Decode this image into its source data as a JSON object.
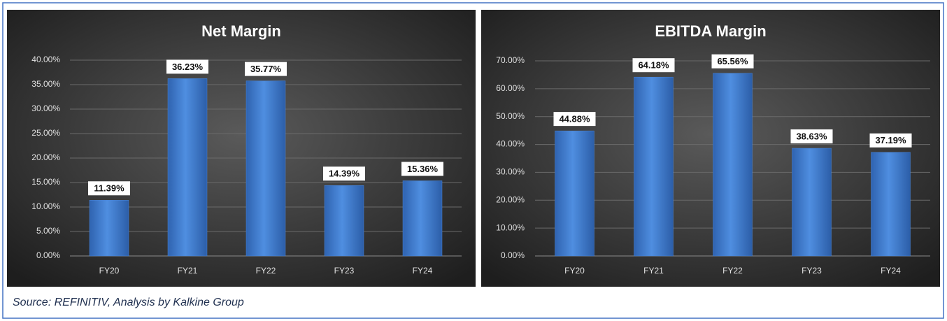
{
  "chart_data": [
    {
      "type": "bar",
      "title": "Net Margin",
      "categories": [
        "FY20",
        "FY21",
        "FY22",
        "FY23",
        "FY24"
      ],
      "values": [
        11.39,
        36.23,
        35.77,
        14.39,
        15.36
      ],
      "value_labels": [
        "11.39%",
        "36.23%",
        "35.77%",
        "14.39%",
        "15.36%"
      ],
      "color": "#4a86d8",
      "ylim": [
        0,
        40
      ],
      "yticks": [
        {
          "value": 0,
          "label": "0.00%"
        },
        {
          "value": 5,
          "label": "5.00%"
        },
        {
          "value": 10,
          "label": "10.00%"
        },
        {
          "value": 15,
          "label": "15.00%"
        },
        {
          "value": 20,
          "label": "20.00%"
        },
        {
          "value": 25,
          "label": "25.00%"
        },
        {
          "value": 30,
          "label": "30.00%"
        },
        {
          "value": 35,
          "label": "35.00%"
        },
        {
          "value": 40,
          "label": "40.00%"
        }
      ],
      "grid": true
    },
    {
      "type": "bar",
      "title": "EBITDA Margin",
      "categories": [
        "FY20",
        "FY21",
        "FY22",
        "FY23",
        "FY24"
      ],
      "values": [
        44.88,
        64.18,
        65.56,
        38.63,
        37.19
      ],
      "value_labels": [
        "44.88%",
        "64.18%",
        "65.56%",
        "38.63%",
        "37.19%"
      ],
      "color": "#4a86d8",
      "ylim": [
        0,
        70
      ],
      "yticks": [
        {
          "value": 0,
          "label": "0.00%"
        },
        {
          "value": 10,
          "label": "10.00%"
        },
        {
          "value": 20,
          "label": "20.00%"
        },
        {
          "value": 30,
          "label": "30.00%"
        },
        {
          "value": 40,
          "label": "40.00%"
        },
        {
          "value": 50,
          "label": "50.00%"
        },
        {
          "value": 60,
          "label": "60.00%"
        },
        {
          "value": 70,
          "label": "70.00%"
        }
      ],
      "grid": true
    }
  ],
  "source": "Source: REFINITIV, Analysis by Kalkine Group"
}
